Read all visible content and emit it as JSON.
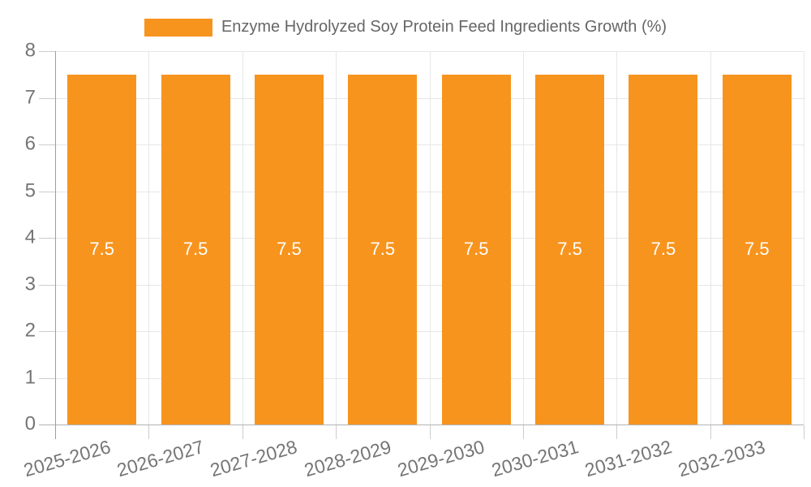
{
  "legend": {
    "label": "Enzyme Hydrolyzed Soy Protein Feed Ingredients Growth (%)"
  },
  "chart_data": {
    "type": "bar",
    "title": "Enzyme Hydrolyzed Soy Protein Feed Ingredients Growth (%)",
    "categories": [
      "2025-2026",
      "2026-2027",
      "2027-2028",
      "2028-2029",
      "2029-2030",
      "2030-2031",
      "2031-2032",
      "2032-2033"
    ],
    "values": [
      7.5,
      7.5,
      7.5,
      7.5,
      7.5,
      7.5,
      7.5,
      7.5
    ],
    "bar_labels": [
      "7.5",
      "7.5",
      "7.5",
      "7.5",
      "7.5",
      "7.5",
      "7.5",
      "7.5"
    ],
    "series": [
      {
        "name": "Enzyme Hydrolyzed Soy Protein Feed Ingredients Growth (%)",
        "values": [
          7.5,
          7.5,
          7.5,
          7.5,
          7.5,
          7.5,
          7.5,
          7.5
        ]
      }
    ],
    "xlabel": "",
    "ylabel": "",
    "ylim": [
      0,
      8
    ],
    "yticks": [
      0,
      1,
      2,
      3,
      4,
      5,
      6,
      7,
      8
    ],
    "grid": true,
    "legend_position": "top-center",
    "colors": {
      "bar": "#f7941e",
      "bar_label": "#ffffff",
      "gridline": "#e6e6e6",
      "y_axis_line": "#9e9e9e",
      "x_axis_line": "#b3b3b3",
      "tick": "#cccccc",
      "axis_text": "#757575",
      "legend_text": "#666666",
      "background": "#ffffff"
    }
  }
}
